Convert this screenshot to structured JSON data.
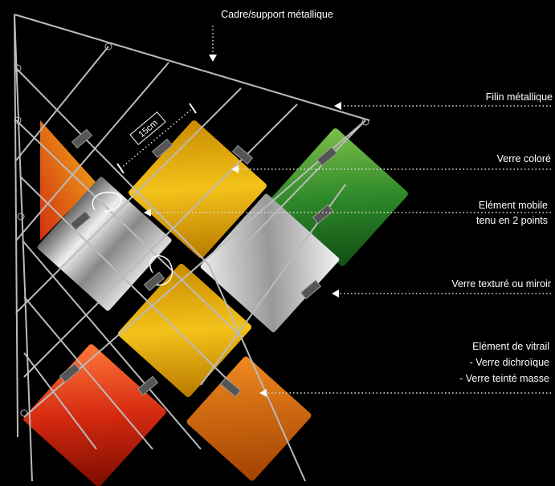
{
  "labels": [
    {
      "lines": [
        "Cadre/support métallique"
      ]
    },
    {
      "lines": [
        "Filin métallique"
      ]
    },
    {
      "lines": [
        "Verre coloré"
      ]
    },
    {
      "lines": [
        "Elément mobile",
        "tenu en 2 points"
      ]
    },
    {
      "lines": [
        "Verre texturé ou miroir"
      ]
    },
    {
      "lines": [
        "Elément de vitrail",
        "- Verre dichroïque",
        "- Verre teinté masse"
      ]
    }
  ],
  "dimension": "15cm"
}
